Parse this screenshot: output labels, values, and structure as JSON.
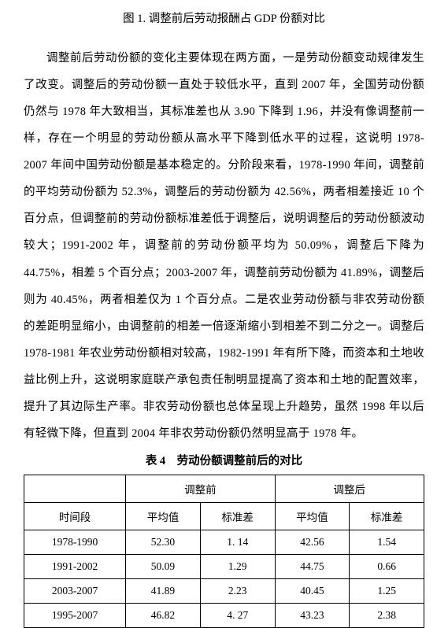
{
  "figure_caption": "图 1. 调整前后劳动报酬占 GDP 份额对比",
  "paragraph": "调整前后劳动份额的变化主要体现在两方面，一是劳动份额变动规律发生了改变。调整后的劳动份额一直处于较低水平，直到 2007 年，全国劳动份额仍然与 1978 年大致相当，其标准差也从 3.90 下降到 1.96，并没有像调整前一样，存在一个明显的劳动份额从高水平下降到低水平的过程，这说明 1978-2007 年间中国劳动份额是基本稳定的。分阶段来看，1978-1990 年间，调整前的平均劳动份额为 52.3%，调整后的劳动份额为 42.56%，两者相差接近 10 个百分点，但调整前的劳动份额标准差低于调整后，说明调整后的劳动份额波动较大；1991-2002 年，调整前的劳动份额平均为 50.09%，调整后下降为 44.75%，相差 5 个百分点；2003-2007 年，调整前劳动份额为 41.89%，调整后则为 40.45%，两者相差仅为 1 个百分点。二是农业劳动份额与非农劳动份额的差距明显缩小，由调整前的相差一倍逐渐缩小到相差不到二分之一。调整后 1978-1981 年农业劳动份额相对较高，1982-1991 年有所下降，而资本和土地收益比例上升，这说明家庭联产承包责任制明显提高了资本和土地的配置效率，提升了其边际生产率。非农劳动份额也总体呈现上升趋势，虽然 1998 年以后有轻微下降，但直到 2004 年非农劳动份额仍然明显高于 1978 年。",
  "table": {
    "caption": "表 4　劳动份额调整前后的对比",
    "group_headers": [
      "",
      "调整前",
      "调整后"
    ],
    "sub_headers": [
      "时间段",
      "平均值",
      "标准差",
      "平均值",
      "标准差"
    ],
    "rows": [
      [
        "1978-1990",
        "52.30",
        "1. 14",
        "42.56",
        "1.54"
      ],
      [
        "1991-2002",
        "50.09",
        "1.29",
        "44.75",
        "0.66"
      ],
      [
        "2003-2007",
        "41.89",
        "2.23",
        "40.45",
        "1.25"
      ],
      [
        "1995-2007",
        "46.82",
        "4. 27",
        "43.23",
        "2.38"
      ]
    ],
    "border_color": "#000000",
    "background_color": "#ffffff",
    "font_size_pt": 10
  },
  "colors": {
    "text": "#000000",
    "background": "#ffffff"
  }
}
